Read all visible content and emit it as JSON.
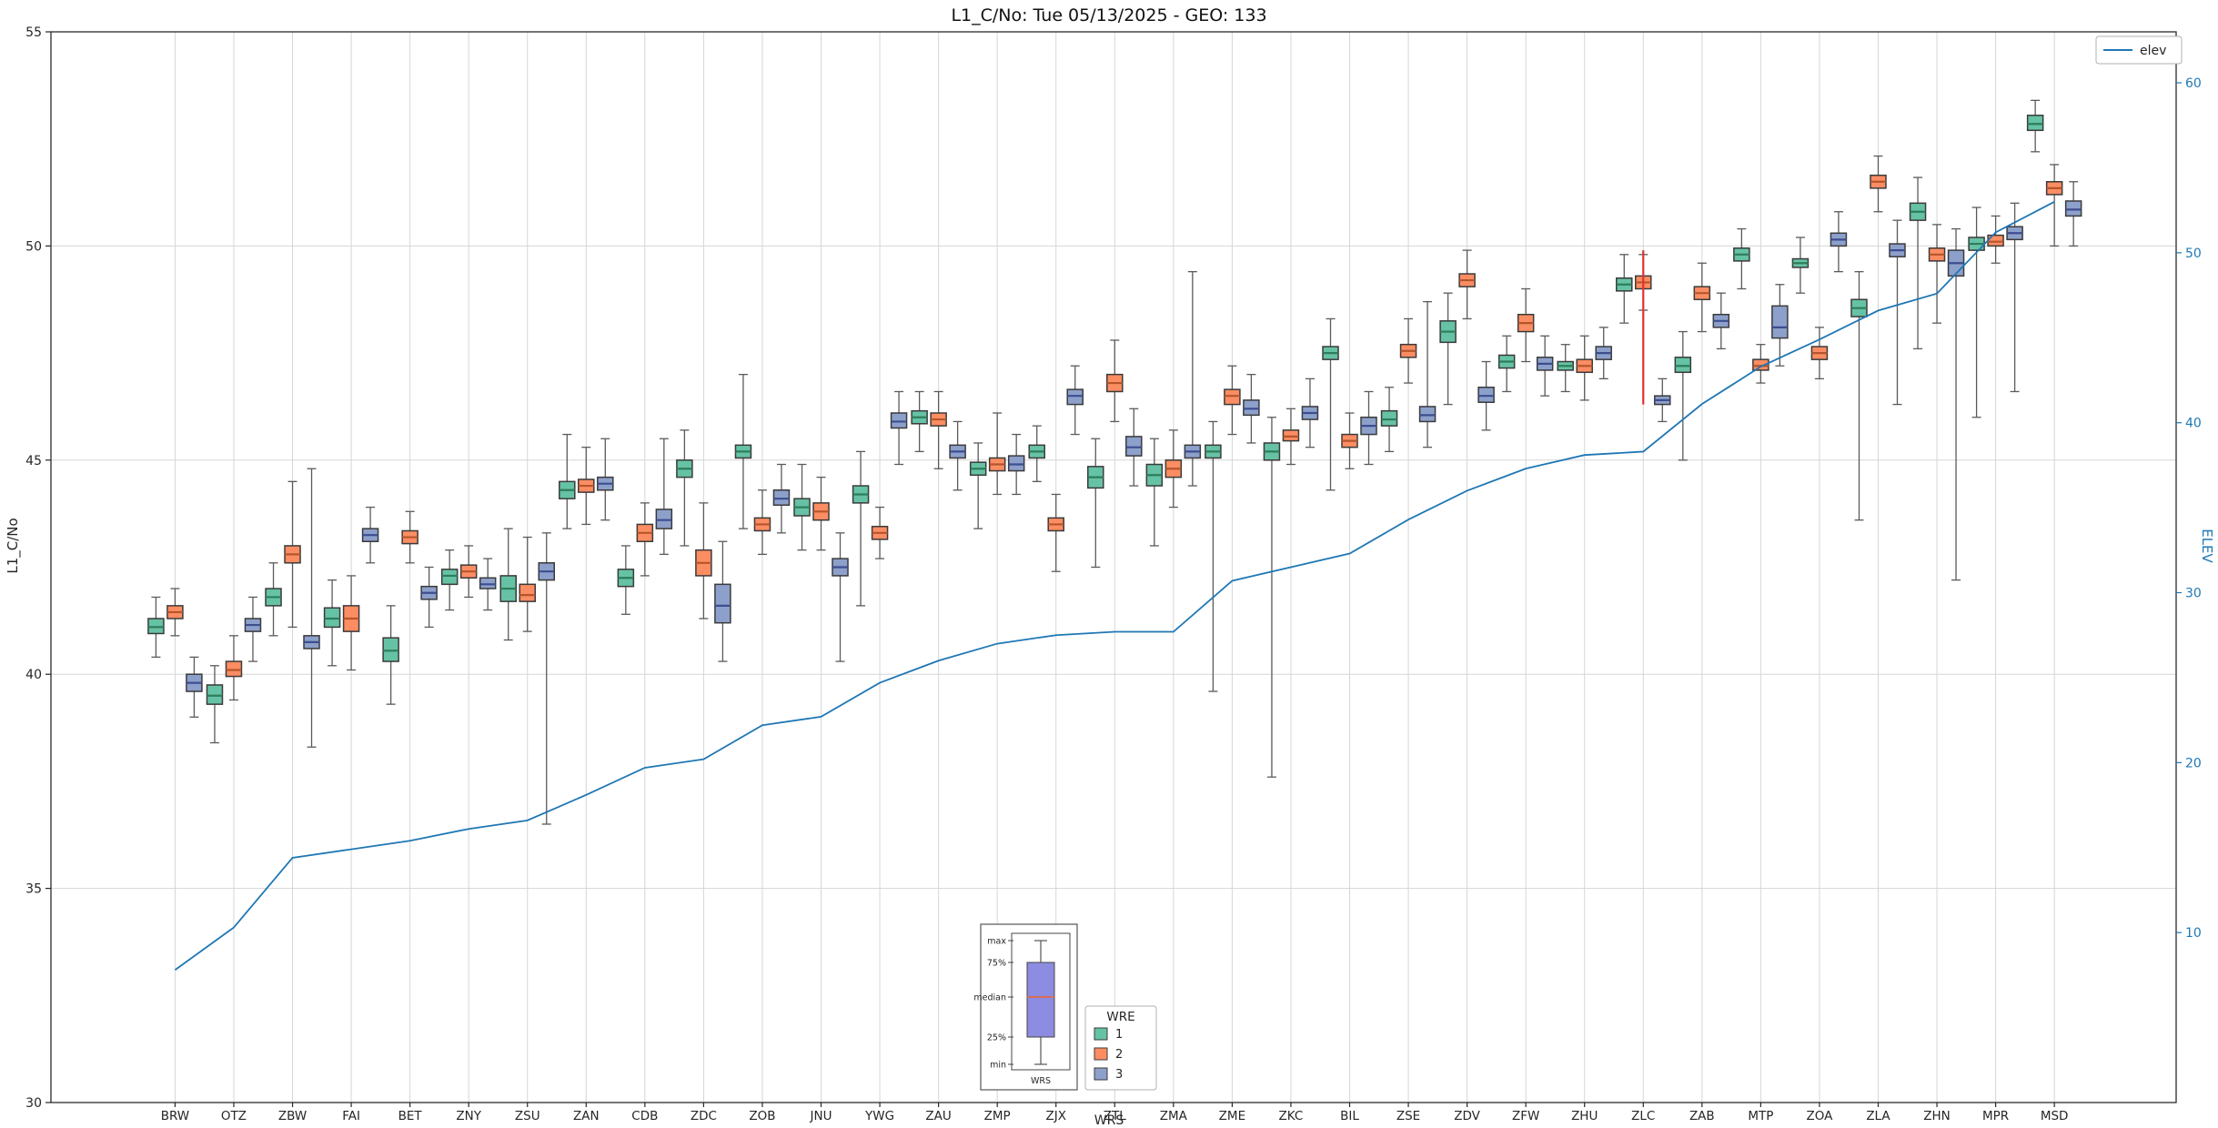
{
  "chart_data": {
    "type": "boxplot",
    "title": "L1_C/No: Tue 05/13/2025 - GEO: 133",
    "xlabel": "WRS",
    "ylabel_left": "L1_C/No",
    "ylabel_right": "ELEV",
    "ylim_left": [
      30,
      55
    ],
    "yticks_left": [
      30,
      35,
      40,
      45,
      50,
      55
    ],
    "ylim_right": [
      0,
      63
    ],
    "yticks_right": [
      10,
      20,
      30,
      40,
      50,
      60
    ],
    "grid": true,
    "colors": {
      "grid": "#d6d6d6",
      "frame": "#2b2b2b",
      "whisker": "#5a5a5a",
      "box_edge": "#3a3a3a",
      "elev_line": "#1f77b4",
      "right_axis_text": "#1f77b4",
      "legend_border": "#b0b0b0"
    },
    "legend_line": {
      "label": "elev",
      "color": "#1f77b4"
    },
    "legend_wre": {
      "title": "WRE",
      "entries": [
        {
          "label": "1",
          "color": "#66c2a5"
        },
        {
          "label": "2",
          "color": "#fc8d62"
        },
        {
          "label": "3",
          "color": "#8da0cb"
        }
      ]
    },
    "inset": {
      "labels": [
        "max",
        "75%",
        "median",
        "25%",
        "min"
      ],
      "xlabel": "WRS",
      "box_fill": "#8c8ce0",
      "median_color": "#d86c5a"
    },
    "stations": [
      "BRW",
      "OTZ",
      "ZBW",
      "FAI",
      "BET",
      "ZNY",
      "ZSU",
      "ZAN",
      "CDB",
      "ZDC",
      "ZOB",
      "JNU",
      "YWG",
      "ZAU",
      "ZMP",
      "ZJX",
      "ZTL",
      "ZMA",
      "ZME",
      "ZKC",
      "BIL",
      "ZSE",
      "ZDV",
      "ZFW",
      "ZHU",
      "ZLC",
      "ZAB",
      "MTP",
      "ZOA",
      "ZLA",
      "ZHN",
      "MPR",
      "MSD"
    ],
    "groups": [
      {
        "name": "1",
        "color": "#66c2a5",
        "median_color": "#2e7d5b",
        "boxes": [
          [
            40.4,
            40.95,
            41.1,
            41.3,
            41.8
          ],
          [
            38.4,
            39.3,
            39.5,
            39.75,
            40.2
          ],
          [
            40.9,
            41.6,
            41.8,
            42.0,
            42.6
          ],
          [
            40.2,
            41.1,
            41.3,
            41.55,
            42.2
          ],
          [
            39.3,
            40.3,
            40.55,
            40.85,
            41.6
          ],
          [
            41.5,
            42.1,
            42.3,
            42.45,
            42.9
          ],
          [
            40.8,
            41.7,
            42.0,
            42.3,
            43.4
          ],
          [
            43.4,
            44.1,
            44.3,
            44.5,
            45.6
          ],
          [
            41.4,
            42.05,
            42.25,
            42.45,
            43.0
          ],
          [
            43.0,
            44.6,
            44.8,
            45.0,
            45.7
          ],
          [
            43.4,
            45.05,
            45.2,
            45.35,
            47.0
          ],
          [
            42.9,
            43.7,
            43.9,
            44.1,
            44.9
          ],
          [
            41.6,
            44.0,
            44.2,
            44.4,
            45.2
          ],
          [
            45.2,
            45.85,
            46.0,
            46.15,
            46.6
          ],
          [
            43.4,
            44.65,
            44.8,
            44.95,
            45.4
          ],
          [
            44.5,
            45.05,
            45.2,
            45.35,
            45.8
          ],
          [
            42.5,
            44.35,
            44.6,
            44.85,
            45.5
          ],
          [
            43.0,
            44.4,
            44.65,
            44.9,
            45.5
          ],
          [
            39.6,
            45.05,
            45.2,
            45.35,
            45.9
          ],
          [
            37.6,
            45.0,
            45.2,
            45.4,
            46.0
          ],
          [
            44.3,
            47.35,
            47.5,
            47.65,
            48.3
          ],
          [
            45.2,
            45.8,
            45.95,
            46.15,
            46.7
          ],
          [
            46.3,
            47.75,
            48.0,
            48.25,
            48.9
          ],
          [
            46.6,
            47.15,
            47.3,
            47.45,
            47.9
          ],
          [
            46.6,
            47.1,
            47.2,
            47.3,
            47.7
          ],
          [
            48.2,
            48.95,
            49.1,
            49.25,
            49.8
          ],
          [
            45.0,
            47.05,
            47.2,
            47.4,
            48.0
          ],
          [
            49.0,
            49.65,
            49.8,
            49.95,
            50.4
          ],
          [
            48.9,
            49.5,
            49.6,
            49.7,
            50.2
          ],
          [
            43.6,
            48.35,
            48.55,
            48.75,
            49.4
          ],
          [
            47.6,
            50.6,
            50.8,
            51.0,
            51.6
          ],
          [
            46.0,
            49.9,
            50.05,
            50.2,
            50.9
          ],
          [
            52.2,
            52.7,
            52.85,
            53.05,
            53.4
          ]
        ]
      },
      {
        "name": "2",
        "color": "#fc8d62",
        "median_color": "#b5552d",
        "boxes": [
          [
            40.9,
            41.3,
            41.45,
            41.6,
            42.0
          ],
          [
            39.4,
            39.95,
            40.1,
            40.3,
            40.9
          ],
          [
            41.1,
            42.6,
            42.8,
            43.0,
            44.5
          ],
          [
            40.1,
            41.0,
            41.3,
            41.6,
            42.3
          ],
          [
            42.6,
            43.05,
            43.2,
            43.35,
            43.8
          ],
          [
            41.8,
            42.25,
            42.4,
            42.55,
            43.0
          ],
          [
            41.0,
            41.7,
            41.85,
            42.1,
            43.2
          ],
          [
            43.5,
            44.25,
            44.4,
            44.55,
            45.3
          ],
          [
            42.3,
            43.1,
            43.3,
            43.5,
            44.0
          ],
          [
            41.3,
            42.3,
            42.6,
            42.9,
            44.0
          ],
          [
            42.8,
            43.35,
            43.5,
            43.65,
            44.3
          ],
          [
            42.9,
            43.6,
            43.8,
            44.0,
            44.6
          ],
          [
            42.7,
            43.15,
            43.3,
            43.45,
            43.9
          ],
          [
            44.8,
            45.8,
            45.95,
            46.1,
            46.6
          ],
          [
            44.2,
            44.75,
            44.9,
            45.05,
            46.1
          ],
          [
            42.4,
            43.35,
            43.5,
            43.65,
            44.2
          ],
          [
            45.9,
            46.6,
            46.8,
            47.0,
            47.8
          ],
          [
            43.9,
            44.6,
            44.8,
            45.0,
            45.7
          ],
          [
            45.6,
            46.3,
            46.5,
            46.65,
            47.2
          ],
          [
            44.9,
            45.45,
            45.55,
            45.7,
            46.2
          ],
          [
            44.8,
            45.3,
            45.45,
            45.6,
            46.1
          ],
          [
            46.8,
            47.4,
            47.55,
            47.7,
            48.3
          ],
          [
            48.3,
            49.05,
            49.2,
            49.35,
            49.9
          ],
          [
            47.3,
            48.0,
            48.2,
            48.4,
            49.0
          ],
          [
            46.4,
            47.05,
            47.2,
            47.35,
            47.9
          ],
          [
            48.5,
            49.0,
            49.15,
            49.3,
            49.8
          ],
          [
            48.0,
            48.75,
            48.9,
            49.05,
            49.6
          ],
          [
            46.8,
            47.1,
            47.2,
            47.35,
            47.7
          ],
          [
            46.9,
            47.35,
            47.5,
            47.65,
            48.1
          ],
          [
            50.8,
            51.35,
            51.5,
            51.65,
            52.1
          ],
          [
            48.2,
            49.65,
            49.8,
            49.95,
            50.5
          ],
          [
            49.6,
            50.0,
            50.1,
            50.25,
            50.7
          ],
          [
            50.0,
            51.2,
            51.35,
            51.5,
            51.9
          ]
        ]
      },
      {
        "name": "3",
        "color": "#8da0cb",
        "median_color": "#3d4e8f",
        "boxes": [
          [
            39.0,
            39.6,
            39.8,
            40.0,
            40.4
          ],
          [
            40.3,
            41.0,
            41.15,
            41.3,
            41.8
          ],
          [
            38.3,
            40.6,
            40.75,
            40.9,
            44.8
          ],
          [
            42.6,
            43.1,
            43.25,
            43.4,
            43.9
          ],
          [
            41.1,
            41.75,
            41.9,
            42.05,
            42.5
          ],
          [
            41.5,
            42.0,
            42.1,
            42.25,
            42.7
          ],
          [
            36.5,
            42.2,
            42.4,
            42.6,
            43.3
          ],
          [
            43.6,
            44.3,
            44.45,
            44.6,
            45.5
          ],
          [
            42.8,
            43.4,
            43.6,
            43.85,
            45.5
          ],
          [
            40.3,
            41.2,
            41.6,
            42.1,
            43.1
          ],
          [
            43.3,
            43.95,
            44.1,
            44.3,
            44.9
          ],
          [
            40.3,
            42.3,
            42.5,
            42.7,
            43.3
          ],
          [
            44.9,
            45.75,
            45.9,
            46.1,
            46.6
          ],
          [
            44.3,
            45.05,
            45.2,
            45.35,
            45.9
          ],
          [
            44.2,
            44.75,
            44.9,
            45.1,
            45.6
          ],
          [
            45.6,
            46.3,
            46.5,
            46.65,
            47.2
          ],
          [
            44.4,
            45.1,
            45.3,
            45.55,
            46.2
          ],
          [
            44.4,
            45.05,
            45.2,
            45.35,
            49.4
          ],
          [
            45.4,
            46.05,
            46.2,
            46.4,
            47.0
          ],
          [
            45.3,
            45.95,
            46.1,
            46.25,
            46.9
          ],
          [
            44.9,
            45.6,
            45.8,
            46.0,
            46.6
          ],
          [
            45.3,
            45.9,
            46.05,
            46.25,
            48.7
          ],
          [
            45.7,
            46.35,
            46.5,
            46.7,
            47.3
          ],
          [
            46.5,
            47.1,
            47.25,
            47.4,
            47.9
          ],
          [
            46.9,
            47.35,
            47.5,
            47.65,
            48.1
          ],
          [
            45.9,
            46.3,
            46.4,
            46.5,
            46.9
          ],
          [
            47.6,
            48.1,
            48.25,
            48.4,
            48.9
          ],
          [
            47.2,
            47.85,
            48.1,
            48.6,
            49.1
          ],
          [
            49.4,
            50.0,
            50.15,
            50.3,
            50.8
          ],
          [
            46.3,
            49.75,
            49.9,
            50.05,
            50.6
          ],
          [
            42.2,
            49.3,
            49.6,
            49.9,
            50.4
          ],
          [
            46.6,
            50.15,
            50.3,
            50.45,
            51.0
          ],
          [
            50.0,
            50.7,
            50.85,
            51.05,
            51.5
          ]
        ]
      }
    ],
    "elev": [
      7.8,
      10.3,
      14.4,
      14.9,
      15.4,
      16.1,
      16.6,
      18.1,
      19.7,
      20.2,
      22.2,
      22.7,
      24.7,
      26.0,
      27.0,
      27.5,
      27.7,
      27.7,
      30.7,
      31.5,
      32.3,
      34.3,
      36.0,
      37.3,
      38.1,
      38.3,
      41.1,
      43.3,
      44.9,
      46.6,
      47.6,
      51.2,
      53.0
    ],
    "annotation_red_line": {
      "station": "ZLC",
      "group_index": 1,
      "from": 46.3,
      "to": 49.9,
      "color": "#e03131"
    }
  }
}
